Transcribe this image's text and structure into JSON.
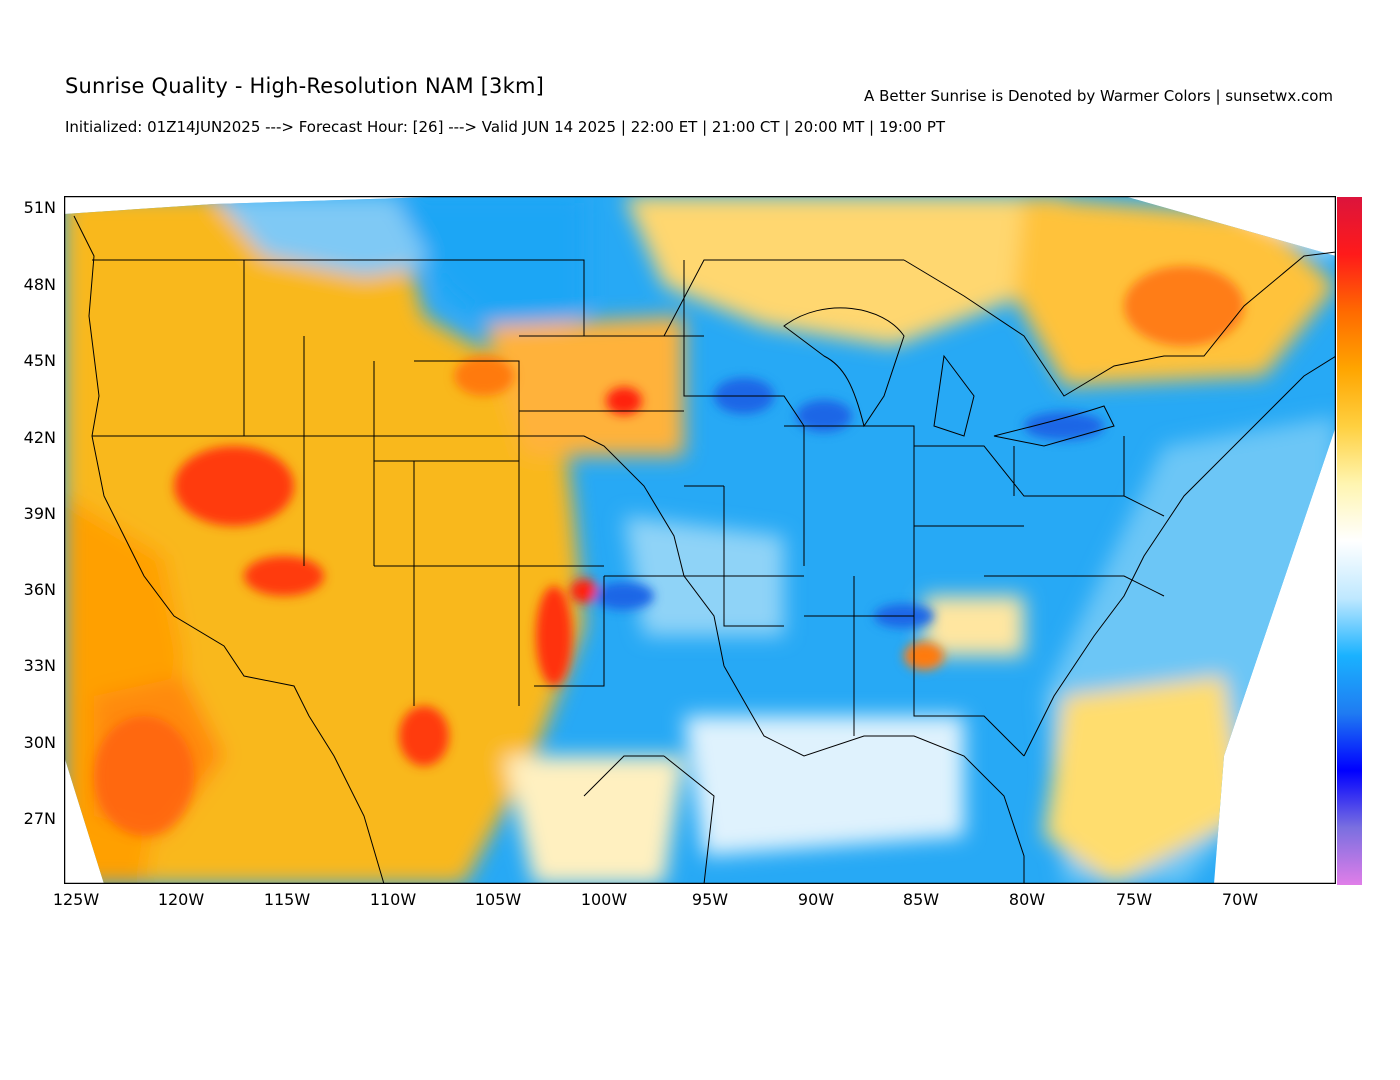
{
  "header": {
    "title": "Sunrise Quality - High-Resolution NAM [3km]",
    "subtitle": "Initialized: 01Z14JUN2025 ---> Forecast Hour: [26] ---> Valid JUN 14 2025 | 22:00 ET | 21:00 CT | 20:00 MT | 19:00 PT",
    "credit": "A Better Sunrise is Denoted by Warmer Colors | sunsetwx.com"
  },
  "axes": {
    "lat_labels": [
      "51N",
      "48N",
      "45N",
      "42N",
      "39N",
      "36N",
      "33N",
      "30N",
      "27N"
    ],
    "lon_labels": [
      "125W",
      "120W",
      "115W",
      "110W",
      "105W",
      "100W",
      "95W",
      "90W",
      "85W",
      "80W",
      "75W",
      "70W"
    ]
  },
  "colorbar": {
    "colors": [
      "#dc143c",
      "#ff1a1a",
      "#ff6a00",
      "#ffa500",
      "#ffd040",
      "#fff5b0",
      "#ffffff",
      "#bfe8ff",
      "#1ab2ff",
      "#1f7cf2",
      "#0000ff",
      "#7a6fe0",
      "#e07ee8"
    ]
  },
  "palette": {
    "ocean_warm": "#ffa500",
    "west_orange": "#f9b81f",
    "hot_red": "#ff3a10",
    "east_blue": "#27a9f5",
    "deep_blue": "#1f66e6",
    "canada_yellow": "#ffcc4a",
    "pale": "#fff3cf"
  }
}
